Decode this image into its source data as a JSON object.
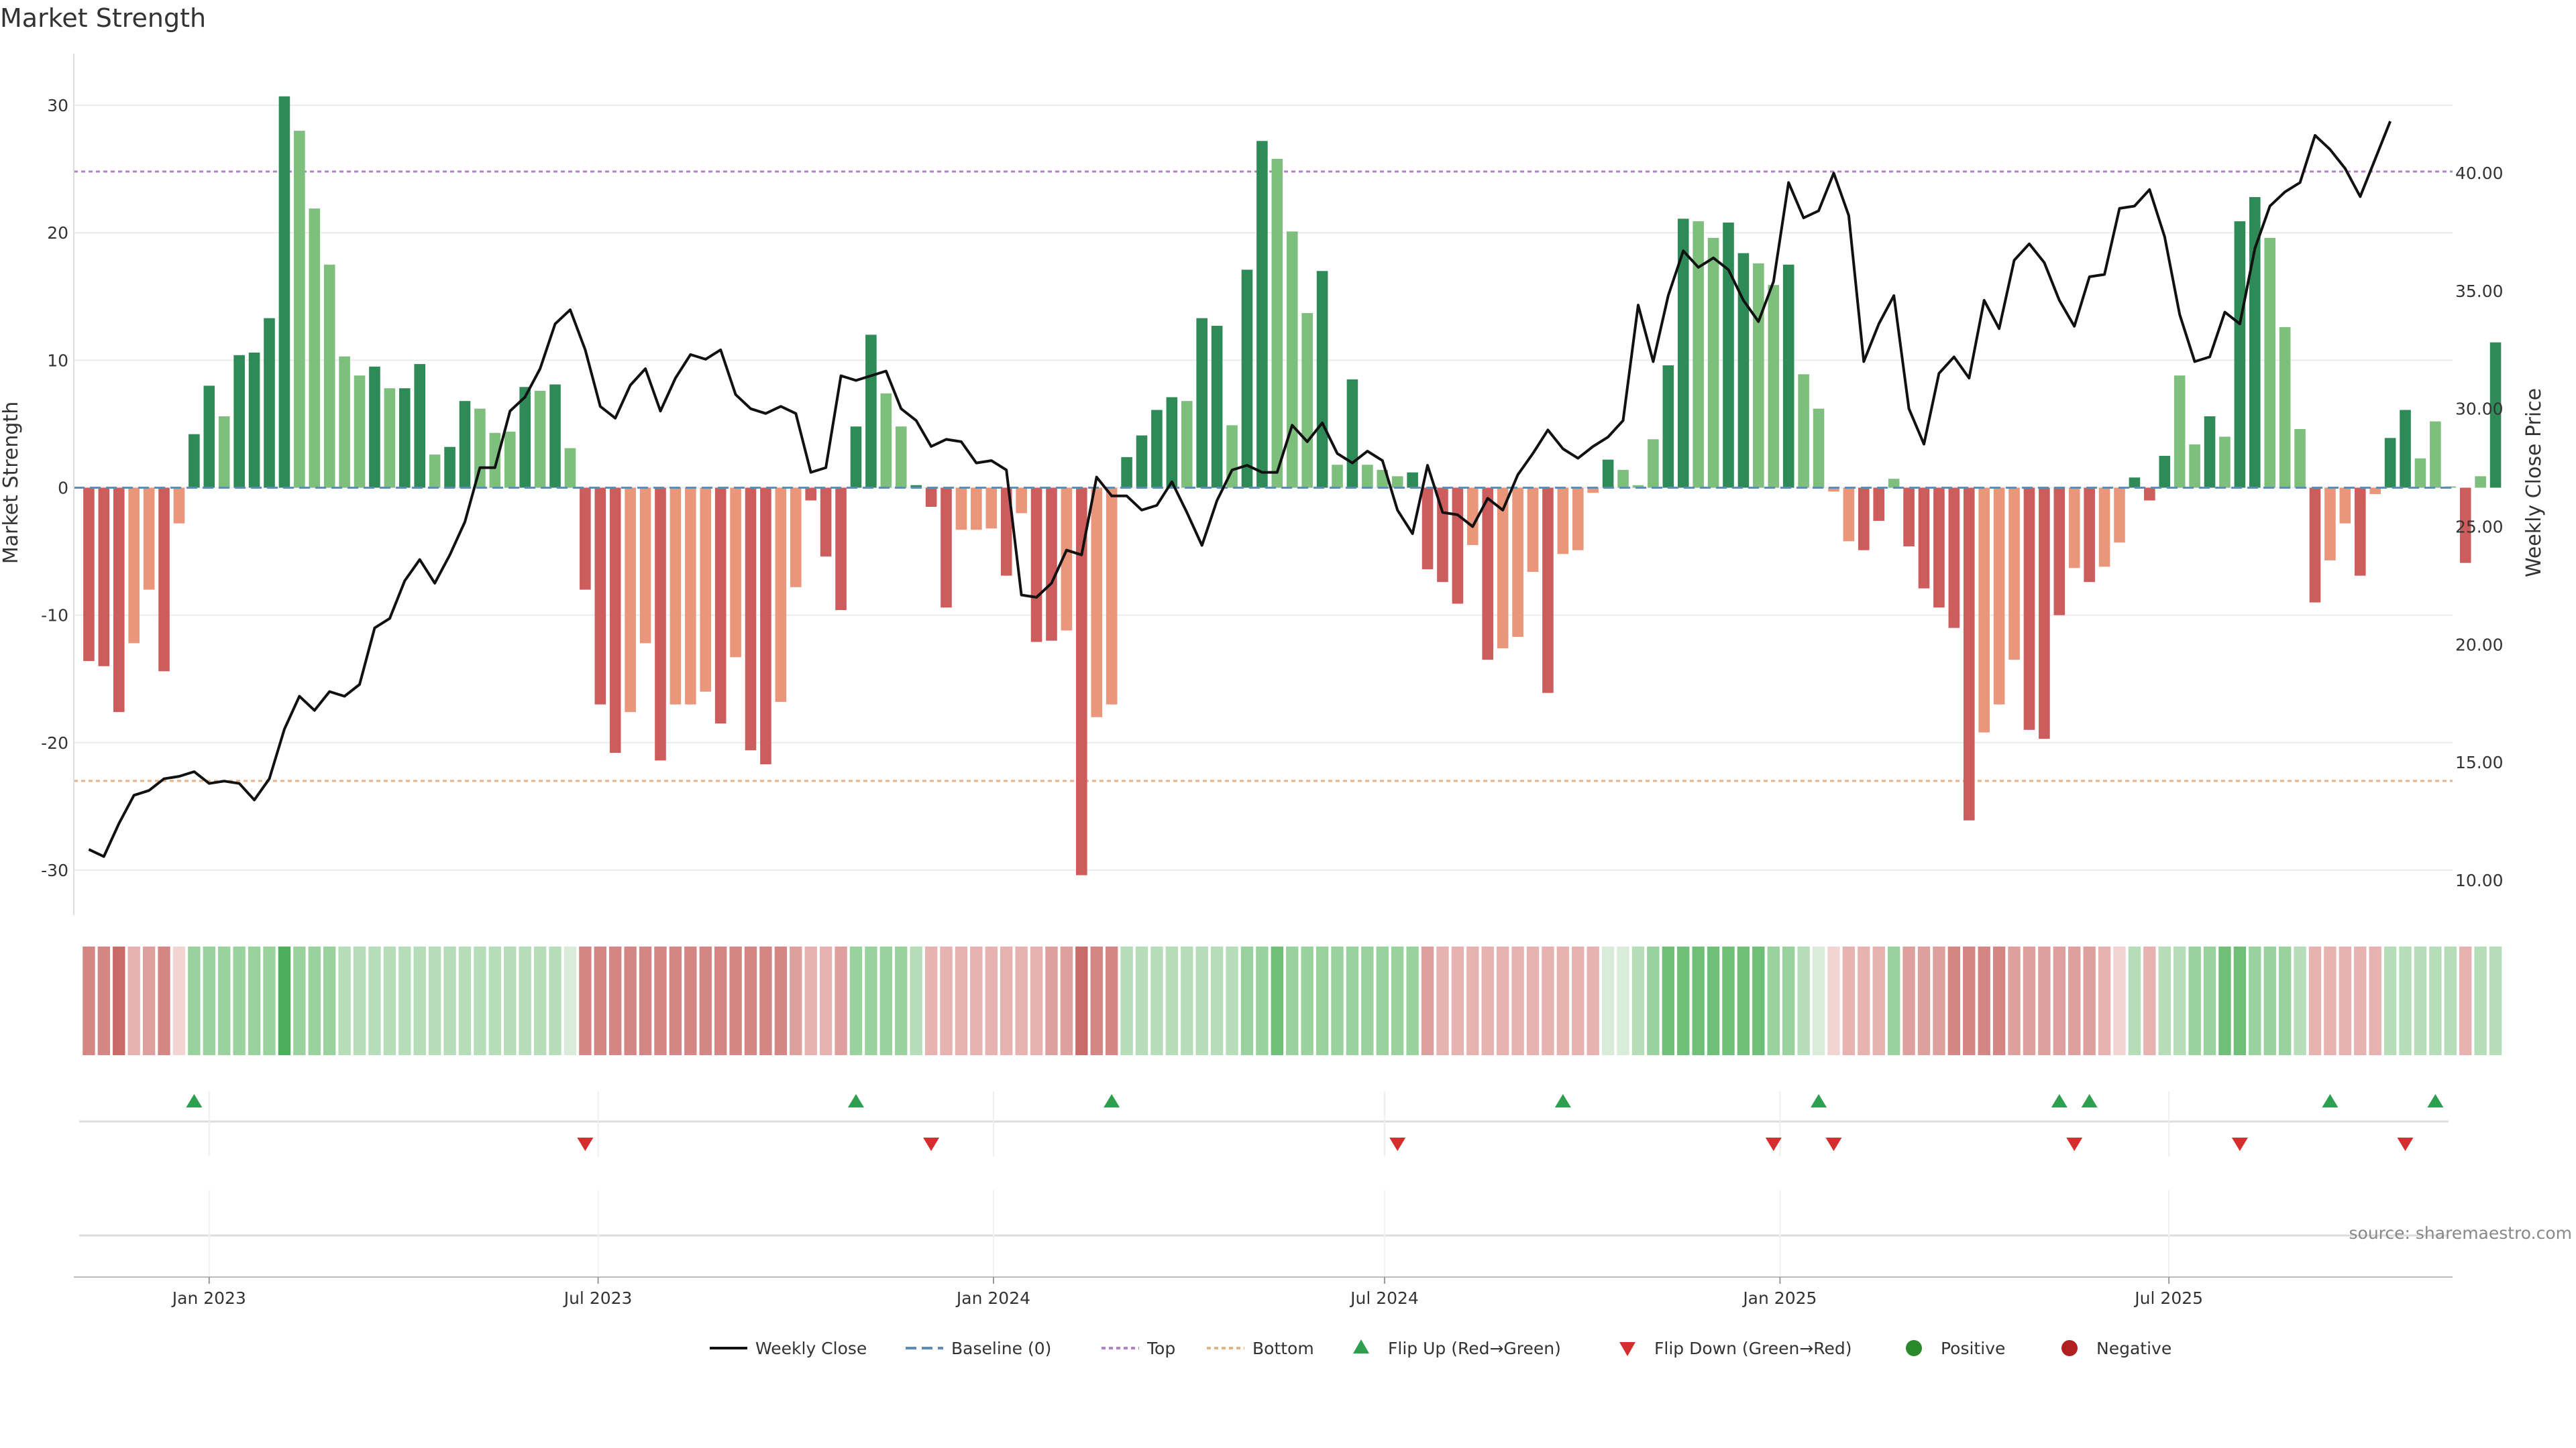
{
  "chart_data": {
    "type": "bar",
    "title": "Market Strength",
    "ylabel": "Market Strength",
    "y2label": "Weekly Close Price",
    "ylim": [
      -33,
      33
    ],
    "y2lim": [
      8.8,
      44.5
    ],
    "yticks": [
      -30,
      -20,
      -10,
      0,
      10,
      20,
      30
    ],
    "y2ticks": [
      "10.00",
      "15.00",
      "20.00",
      "25.00",
      "30.00",
      "35.00",
      "40.00"
    ],
    "x_start": "2022-10-30",
    "x_end": "2025-11-10",
    "week_start": "2022-11-06",
    "x_ticks": [
      {
        "date": "2023-01-01",
        "label": "Jan 2023"
      },
      {
        "date": "2023-07-01",
        "label": "Jul 2023"
      },
      {
        "date": "2024-01-01",
        "label": "Jan 2024"
      },
      {
        "date": "2024-07-01",
        "label": "Jul 2024"
      },
      {
        "date": "2025-01-01",
        "label": "Jan 2025"
      },
      {
        "date": "2025-07-01",
        "label": "Jul 2025"
      }
    ],
    "top_line": 24.8,
    "bottom_line": -23.0,
    "strength": [
      -13.6,
      -14.0,
      -17.6,
      -12.2,
      -8.0,
      -14.4,
      -2.8,
      4.2,
      8.0,
      5.6,
      10.4,
      10.6,
      13.3,
      30.7,
      28.0,
      21.9,
      17.5,
      10.3,
      8.8,
      9.5,
      7.8,
      7.8,
      9.7,
      2.6,
      3.2,
      6.8,
      6.2,
      4.3,
      4.4,
      7.9,
      7.6,
      8.1,
      3.1,
      -8.0,
      -17.0,
      -20.8,
      -17.6,
      -12.2,
      -21.4,
      -17.0,
      -17.0,
      -16.0,
      -18.5,
      -13.3,
      -20.6,
      -21.7,
      -16.8,
      -7.8,
      -1.0,
      -5.4,
      -9.6,
      4.8,
      12.0,
      7.4,
      4.8,
      0.2,
      -1.5,
      -9.4,
      -3.3,
      -3.3,
      -3.2,
      -6.9,
      -2.0,
      -12.1,
      -12.0,
      -11.2,
      -30.4,
      -18.0,
      -17.0,
      2.4,
      4.1,
      6.1,
      7.1,
      6.8,
      13.3,
      12.7,
      4.9,
      17.1,
      27.2,
      25.8,
      20.1,
      13.7,
      17.0,
      1.8,
      8.5,
      1.8,
      1.4,
      0.9,
      1.2,
      -6.4,
      -7.4,
      -9.1,
      -4.5,
      -13.5,
      -12.6,
      -11.7,
      -6.6,
      -16.1,
      -5.2,
      -4.9,
      -0.4,
      2.2,
      1.4,
      0.2,
      3.8,
      9.6,
      21.1,
      20.9,
      19.6,
      20.8,
      18.4,
      17.6,
      15.9,
      17.5,
      8.9,
      6.2,
      -0.3,
      -4.2,
      -4.9,
      -2.6,
      0.7,
      -4.6,
      -7.9,
      -9.4,
      -11.0,
      -26.1,
      -19.2,
      -17.0,
      -13.5,
      -19.0,
      -19.7,
      -10.0,
      -6.3,
      -7.4,
      -6.2,
      -4.3,
      0.8,
      -1.0,
      2.5,
      8.8,
      3.4,
      5.6,
      4.0,
      20.9,
      22.8,
      19.6,
      12.6,
      4.6,
      -9.0,
      -5.7,
      -2.8,
      -6.9,
      -0.5,
      3.9,
      6.1,
      2.3,
      5.2,
      0.1,
      -5.9,
      0.9,
      11.4
    ],
    "strength_shade": [
      1,
      1,
      1,
      0,
      0,
      1,
      0,
      1,
      1,
      0,
      1,
      1,
      1,
      1,
      0,
      0,
      0,
      0,
      0,
      1,
      0,
      1,
      1,
      0,
      1,
      1,
      0,
      0,
      0,
      1,
      0,
      1,
      0,
      1,
      1,
      1,
      0,
      0,
      1,
      0,
      0,
      0,
      1,
      0,
      1,
      1,
      0,
      0,
      1,
      1,
      1,
      1,
      1,
      0,
      0,
      1,
      1,
      1,
      0,
      0,
      0,
      1,
      0,
      1,
      1,
      0,
      1,
      0,
      0,
      1,
      1,
      1,
      1,
      0,
      1,
      1,
      0,
      1,
      1,
      0,
      0,
      0,
      1,
      0,
      1,
      0,
      0,
      0,
      1,
      1,
      1,
      1,
      0,
      1,
      0,
      0,
      0,
      1,
      0,
      0,
      0,
      1,
      0,
      0,
      0,
      1,
      1,
      0,
      0,
      1,
      1,
      0,
      0,
      1,
      0,
      0,
      0,
      0,
      1,
      1,
      0,
      1,
      1,
      1,
      1,
      1,
      0,
      0,
      0,
      1,
      1,
      1,
      0,
      1,
      0,
      0,
      1,
      1,
      1,
      0,
      0,
      1,
      0,
      1,
      1,
      0,
      0,
      0,
      1,
      0,
      0,
      1,
      0,
      1,
      1,
      0,
      0,
      0,
      1,
      0,
      1,
      1
    ],
    "weekly_close": [
      11.3,
      11.0,
      12.4,
      13.6,
      13.8,
      14.3,
      14.4,
      14.6,
      14.1,
      14.2,
      14.1,
      13.4,
      14.3,
      16.4,
      17.8,
      17.2,
      18.0,
      17.8,
      18.3,
      20.7,
      21.1,
      22.7,
      23.6,
      22.6,
      23.8,
      25.2,
      27.5,
      27.5,
      29.9,
      30.5,
      31.7,
      33.6,
      34.2,
      32.5,
      30.1,
      29.6,
      31.0,
      31.7,
      29.9,
      31.3,
      32.3,
      32.1,
      32.5,
      30.6,
      30.0,
      29.8,
      30.1,
      29.8,
      27.3,
      27.5,
      31.4,
      31.2,
      31.4,
      31.6,
      30.0,
      29.5,
      28.4,
      28.7,
      28.6,
      27.7,
      27.8,
      27.4,
      22.1,
      22.0,
      22.6,
      24.0,
      23.8,
      27.1,
      26.3,
      26.3,
      25.7,
      25.9,
      26.9,
      25.6,
      24.2,
      26.1,
      27.4,
      27.6,
      27.3,
      27.3,
      29.3,
      28.6,
      29.4,
      28.1,
      27.7,
      28.2,
      27.8,
      25.7,
      24.7,
      27.6,
      25.6,
      25.5,
      25.0,
      26.2,
      25.7,
      27.2,
      28.1,
      29.1,
      28.3,
      27.9,
      28.4,
      28.8,
      29.5,
      34.4,
      32.0,
      34.8,
      36.7,
      36.0,
      36.4,
      35.9,
      34.6,
      33.7,
      35.4,
      39.6,
      38.1,
      38.4,
      40.0,
      38.2,
      32.0,
      33.6,
      34.8,
      30.0,
      28.5,
      31.5,
      32.2,
      31.3,
      34.6,
      33.4,
      36.3,
      37.0,
      36.2,
      34.6,
      33.5,
      35.6,
      35.7,
      38.5,
      38.6,
      39.3,
      37.3,
      34.0,
      32.0,
      32.2,
      34.1,
      33.6,
      36.8,
      38.6,
      39.2,
      39.6,
      41.6,
      41.0,
      40.2,
      39.0,
      40.6,
      42.2
    ]
  },
  "color_strip": {
    "pos_colors": [
      "#d8ecd9",
      "#b5ddb8",
      "#9ad29e",
      "#6fbf78",
      "#4caf5c"
    ],
    "neg_colors": [
      "#f2d4d3",
      "#e7b3b1",
      "#dea09d",
      "#d38683",
      "#c96b69"
    ],
    "neg_levels": [
      3,
      3,
      4,
      1,
      2,
      3,
      0,
      2,
      2,
      2,
      2,
      2,
      2,
      4,
      2,
      2,
      2,
      1,
      1,
      1,
      1,
      1,
      1,
      1,
      1,
      1,
      1,
      1,
      1,
      1,
      1,
      1,
      0,
      3,
      3,
      3,
      3,
      3,
      3,
      3,
      3,
      3,
      3,
      3,
      3,
      3,
      3,
      2,
      1,
      1,
      2,
      2,
      2,
      2,
      2,
      1,
      1,
      1,
      1,
      1,
      1,
      1,
      1,
      1,
      2,
      2,
      4,
      3,
      3,
      1,
      1,
      1,
      1,
      1,
      1,
      1,
      1,
      2,
      2,
      3,
      2,
      2,
      2,
      2,
      2,
      2,
      2,
      2,
      2,
      2,
      1,
      1,
      1,
      1,
      1,
      1,
      1,
      1,
      1,
      1,
      1,
      0,
      0,
      1,
      2,
      3,
      3,
      3,
      3,
      3,
      3,
      3,
      2,
      2,
      1,
      0,
      0,
      1,
      1,
      1,
      2,
      2,
      2,
      2,
      3,
      3,
      3,
      3,
      2,
      2,
      2,
      2,
      2,
      2,
      1,
      0,
      1,
      1,
      1,
      1,
      2,
      2,
      3,
      3,
      2,
      2,
      2,
      1,
      1,
      1,
      1,
      1,
      1,
      1,
      1,
      1,
      1,
      1,
      1,
      1,
      1,
      2
    ]
  },
  "signals": {
    "flip_up_weeks": [
      7,
      51,
      68,
      98,
      115,
      131,
      133,
      149,
      156
    ],
    "flip_down_weeks": [
      33,
      56,
      87,
      112,
      116,
      132,
      143,
      154
    ]
  },
  "legend": [
    {
      "label": "Weekly Close",
      "marker": "line",
      "color": "#111111"
    },
    {
      "label": "Baseline (0)",
      "marker": "dashed",
      "color": "#5b8db8"
    },
    {
      "label": "Top",
      "marker": "dotted",
      "color": "#b084c6"
    },
    {
      "label": "Bottom",
      "marker": "dotted",
      "color": "#e3b287"
    },
    {
      "label": "Flip Up (Red→Green)",
      "marker": "triangle-up",
      "color": "#2e9e4f"
    },
    {
      "label": "Flip Down (Green→Red)",
      "marker": "triangle-down",
      "color": "#d32f2f"
    },
    {
      "label": "Positive",
      "marker": "circle",
      "color": "#2a8a2a"
    },
    {
      "label": "Negative",
      "marker": "circle",
      "color": "#b02020"
    }
  ],
  "colors": {
    "pos_dark": "#2e8b57",
    "pos_light": "#7ebf7e",
    "neg_dark": "#cd5c5c",
    "neg_light": "#e9967a",
    "price_line": "#111111",
    "baseline": "#5b8db8",
    "top": "#b084c6",
    "bottom": "#e3b287",
    "flip_up": "#2e9e4f",
    "flip_down": "#d32f2f"
  },
  "source": "source: sharemaestro.com"
}
